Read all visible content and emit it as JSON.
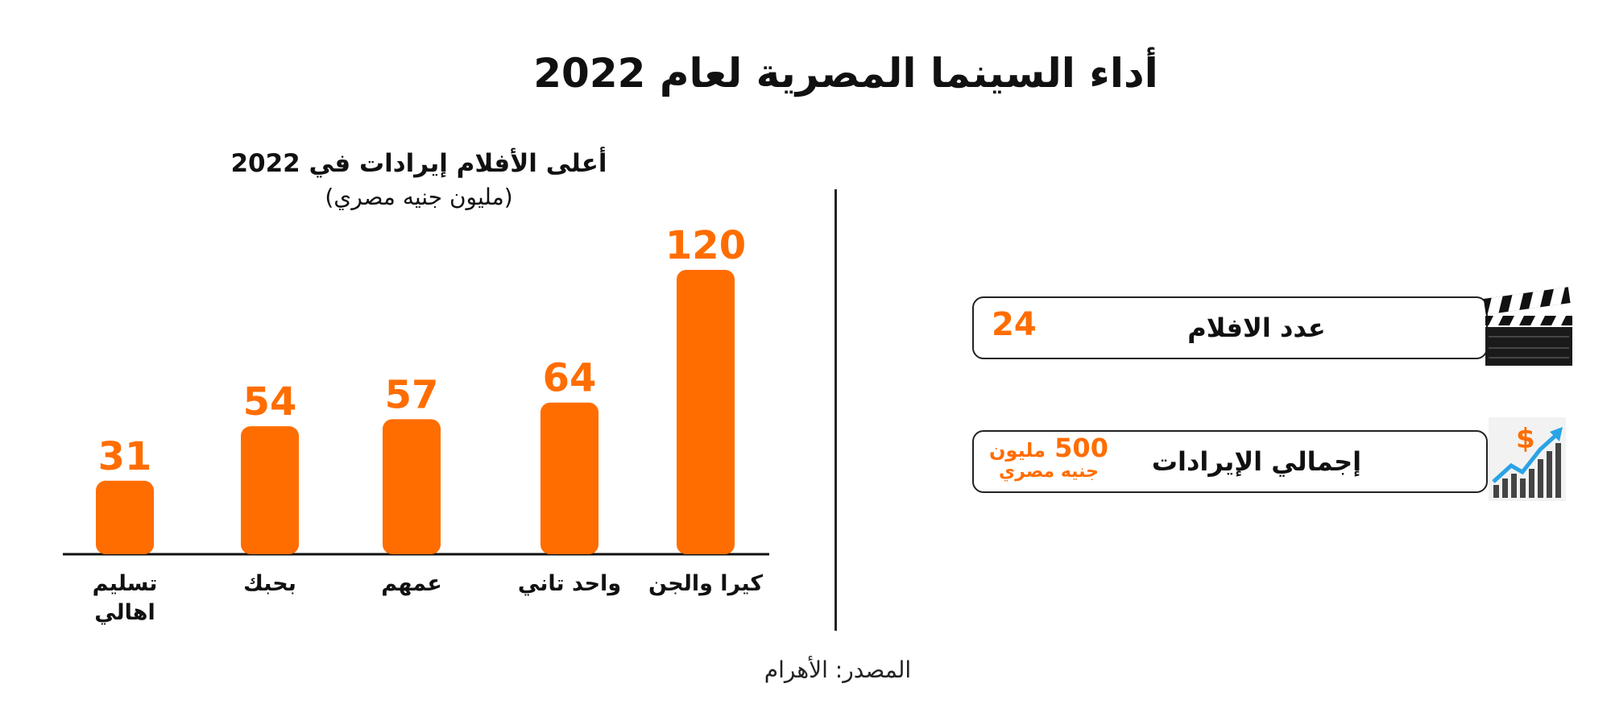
{
  "header": {
    "title": "أداء السينما المصرية لعام 2022"
  },
  "chart_data": {
    "type": "bar",
    "title": "أعلى الأفلام إيرادات في 2022",
    "unit": "(مليون جنيه مصري)",
    "categories": [
      "كيرا والجن",
      "واحد تاني",
      "عمهم",
      "بحبك",
      "تسليم اهالي"
    ],
    "values": [
      120,
      64,
      57,
      54,
      31
    ],
    "ylim": [
      0,
      120
    ],
    "grid": false,
    "legend": "none",
    "bar_color": "#ff6d00"
  },
  "stats": {
    "films": {
      "label": "عدد الافلام",
      "value": "24",
      "icon": "clapperboard-icon"
    },
    "revenue": {
      "label": "إجمالي الإيرادات",
      "value": "500",
      "value_unit": "مليون",
      "value_currency": "جنيه مصري",
      "icon": "revenue-growth-chart-icon"
    }
  },
  "footer": {
    "source": "المصدر: الأهرام"
  },
  "colors": {
    "accent": "#ff6d00",
    "text": "#111111"
  }
}
